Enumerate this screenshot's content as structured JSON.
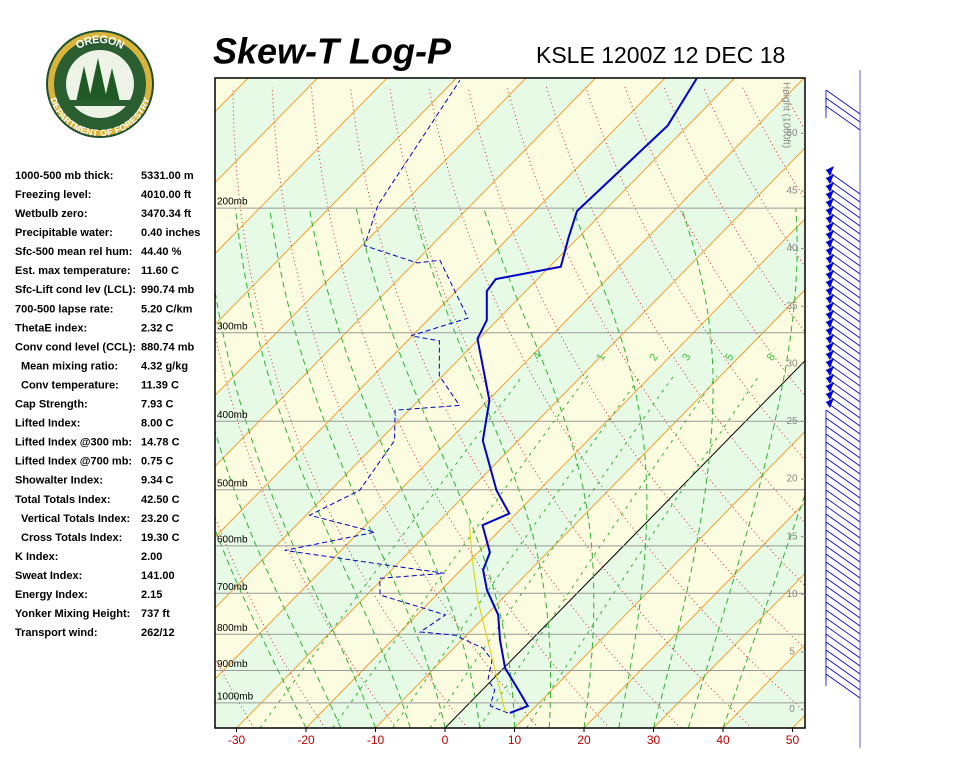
{
  "header": {
    "title": "Skew-T Log-P",
    "station": "KSLE 1200Z 12 DEC 18"
  },
  "logo": {
    "top": "OREGON",
    "bottom": "DEPARTMENT OF FORESTRY"
  },
  "indices": [
    {
      "label": "1000-500 mb thick:",
      "value": "5331.00 m"
    },
    {
      "label": "Freezing level:",
      "value": "4010.00 ft"
    },
    {
      "label": "Wetbulb zero:",
      "value": "3470.34 ft"
    },
    {
      "label": "Precipitable water:",
      "value": "0.40 inches"
    },
    {
      "label": "Sfc-500 mean rel hum:",
      "value": "44.40 %"
    },
    {
      "label": "Est. max temperature:",
      "value": "11.60 C"
    },
    {
      "label": "Sfc-Lift cond lev (LCL):",
      "value": "990.74 mb"
    },
    {
      "label": "700-500 lapse rate:",
      "value": "5.20 C/km"
    },
    {
      "label": "ThetaE index:",
      "value": "2.32 C"
    },
    {
      "label": "Conv cond level (CCL):",
      "value": "880.74 mb"
    },
    {
      "label": "Mean mixing ratio:",
      "value": "4.32 g/kg"
    },
    {
      "label": "Conv temperature:",
      "value": "11.39 C"
    },
    {
      "label": "Cap Strength:",
      "value": "7.93 C"
    },
    {
      "label": "Lifted Index:",
      "value": "8.00 C"
    },
    {
      "label": "Lifted Index @300 mb:",
      "value": "14.78 C"
    },
    {
      "label": "Lifted Index @700 mb:",
      "value": "0.75 C"
    },
    {
      "label": "Showalter Index:",
      "value": "9.34 C"
    },
    {
      "label": "Total Totals Index:",
      "value": "42.50 C"
    },
    {
      "label": "Vertical Totals Index:",
      "value": "23.20 C"
    },
    {
      "label": "Cross Totals Index:",
      "value": "19.30 C"
    },
    {
      "label": "K Index:",
      "value": "2.00"
    },
    {
      "label": "Sweat Index:",
      "value": "141.00"
    },
    {
      "label": "Energy Index:",
      "value": "2.15"
    },
    {
      "label": "Yonker Mixing Height:",
      "value": "737 ft"
    },
    {
      "label": "Transport wind:",
      "value": "262/12"
    }
  ],
  "chart_data": {
    "type": "skew-t",
    "xlim": [
      -33.1,
      51.8
    ],
    "xticks": [
      -30,
      -20,
      -10,
      0,
      10,
      20,
      30,
      40,
      50
    ],
    "plim": [
      1085,
      131
    ],
    "pticks": [
      {
        "value": 1000,
        "label": "1000mb"
      },
      {
        "value": 900,
        "label": "900mb"
      },
      {
        "value": 800,
        "label": "800mb"
      },
      {
        "value": 700,
        "label": "700mb"
      },
      {
        "value": 600,
        "label": "600mb"
      },
      {
        "value": 500,
        "label": "500mb"
      },
      {
        "value": 400,
        "label": "400mb"
      },
      {
        "value": 300,
        "label": "300mb"
      },
      {
        "value": 200,
        "label": "200mb"
      }
    ],
    "height_label": "Height (1000ft)",
    "hlim": [
      -1.6,
      54.8
    ],
    "hticks": [
      0,
      5,
      10,
      15,
      20,
      25,
      30,
      35,
      40,
      45,
      50
    ],
    "mixing_ratio_lines": [
      {
        "value": 0.4,
        "label": ".4"
      },
      1,
      2,
      3,
      5,
      8
    ],
    "series": [
      {
        "color": "#0000cc",
        "pressure": [
          1033,
          1010,
          952,
          893,
          815,
          751,
          693,
          649,
          613,
          561,
          540,
          501,
          426,
          374,
          306,
          288,
          262,
          252,
          242,
          220,
          202,
          153,
          131
        ],
        "temperature": [
          7.2,
          8.8,
          4.7,
          0.2,
          -4.5,
          -8.3,
          -13.4,
          -16.8,
          -18.3,
          -23.2,
          -21.0,
          -26.1,
          -35.1,
          -39.8,
          -50.2,
          -51.5,
          -55.6,
          -56.0,
          -48.4,
          -51.4,
          -53.9,
          -52.9,
          -55.4
        ]
      },
      {
        "color": "#0000cc",
        "dashed": true,
        "pressure": [
          1033,
          1010,
          959,
          928,
          870,
          837,
          802,
          794,
          751,
          704,
          667,
          656,
          609,
          574,
          543,
          501,
          426,
          386,
          380,
          345,
          308,
          303,
          286,
          237,
          239,
          226,
          198,
          132
        ],
        "temperature": [
          6.9,
          3.4,
          1.8,
          -0.6,
          -2.8,
          -5.8,
          -11.7,
          -17.1,
          -15.9,
          -28.1,
          -30.5,
          -21.9,
          -48.1,
          -37.7,
          -49.5,
          -45.8,
          -47.8,
          -52.0,
          -43.4,
          -50.5,
          -55.4,
          -60.2,
          -54.5,
          -66.7,
          -69.6,
          -79.6,
          -83.4,
          -89.2
        ]
      },
      {
        "color": "#e0d000",
        "pressure": [
          1030,
          842,
          716,
          629,
          556
        ],
        "temperature": [
          6.4,
          -4.5,
          -13.3,
          -19.7,
          -25.5
        ]
      }
    ]
  }
}
